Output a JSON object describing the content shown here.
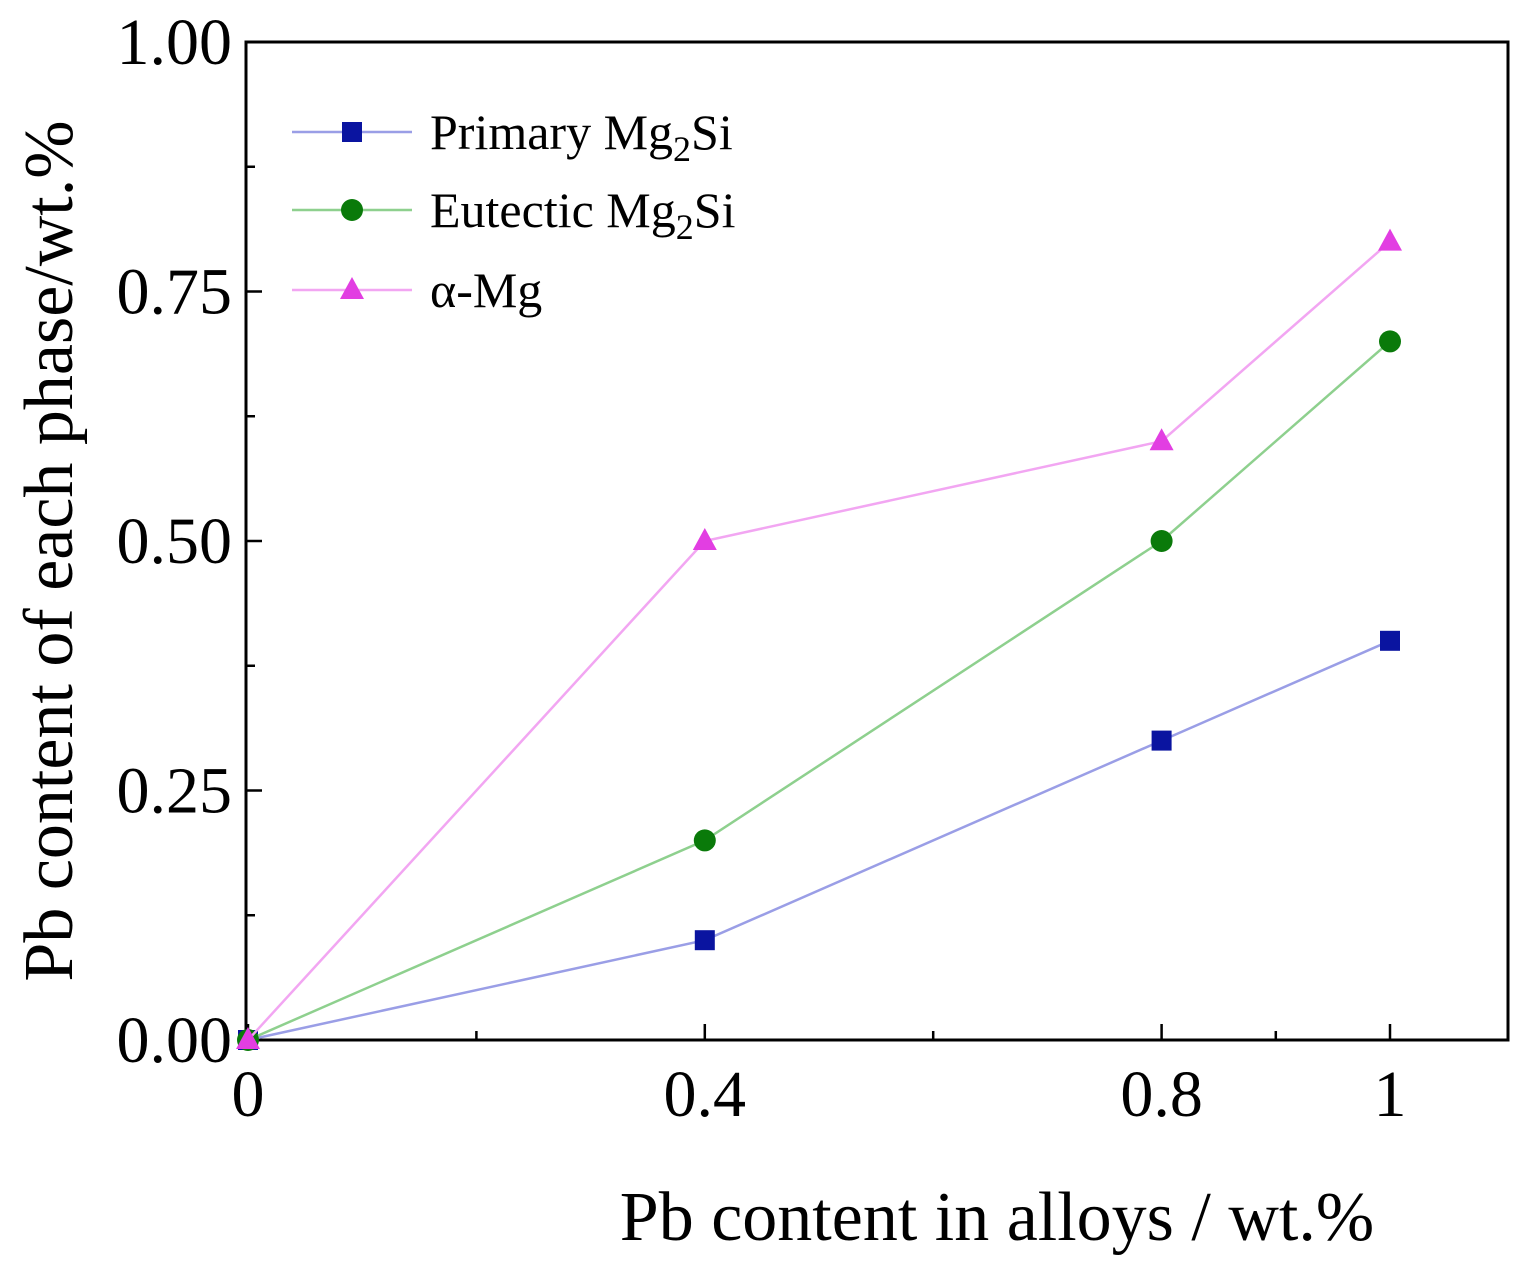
{
  "chart_data": {
    "type": "line",
    "title": "",
    "xlabel": "Pb content in alloys / wt.%",
    "ylabel": "Pb content of each phase/wt.%",
    "x": [
      0,
      0.4,
      0.8,
      1
    ],
    "xlim": [
      0,
      1.1
    ],
    "ylim": [
      0,
      1.0
    ],
    "xticks": [
      0,
      0.4,
      0.8,
      1
    ],
    "xtick_labels": [
      "0",
      "0.4",
      "0.8",
      "1"
    ],
    "xminor_ticks": [
      0.2,
      0.6,
      0.9
    ],
    "yticks": [
      0,
      0.25,
      0.5,
      0.75,
      1.0
    ],
    "ytick_labels": [
      "0.00",
      "0.25",
      "0.50",
      "0.75",
      "1.00"
    ],
    "yminor_ticks": [
      0.125,
      0.375,
      0.625,
      0.875
    ],
    "grid": false,
    "legend_position": "top-left",
    "series": [
      {
        "name": "Primary Mg2Si",
        "label_main": "Primary Mg",
        "label_sub": "2",
        "label_tail": "Si",
        "values": [
          0,
          0.1,
          0.3,
          0.4
        ],
        "marker": "square",
        "line_color": "#9a9ee6",
        "marker_color": "#0a14a0"
      },
      {
        "name": "Eutectic Mg2Si",
        "label_main": "Eutectic Mg",
        "label_sub": "2",
        "label_tail": "Si",
        "values": [
          0,
          0.2,
          0.5,
          0.7
        ],
        "marker": "circle",
        "line_color": "#8ed08e",
        "marker_color": "#0a7a0a"
      },
      {
        "name": "α-Mg",
        "label_main": "α-Mg",
        "label_sub": "",
        "label_tail": "",
        "values": [
          0,
          0.5,
          0.6,
          0.8
        ],
        "marker": "triangle",
        "line_color": "#f2a6f2",
        "marker_color": "#e23ee2"
      }
    ]
  }
}
